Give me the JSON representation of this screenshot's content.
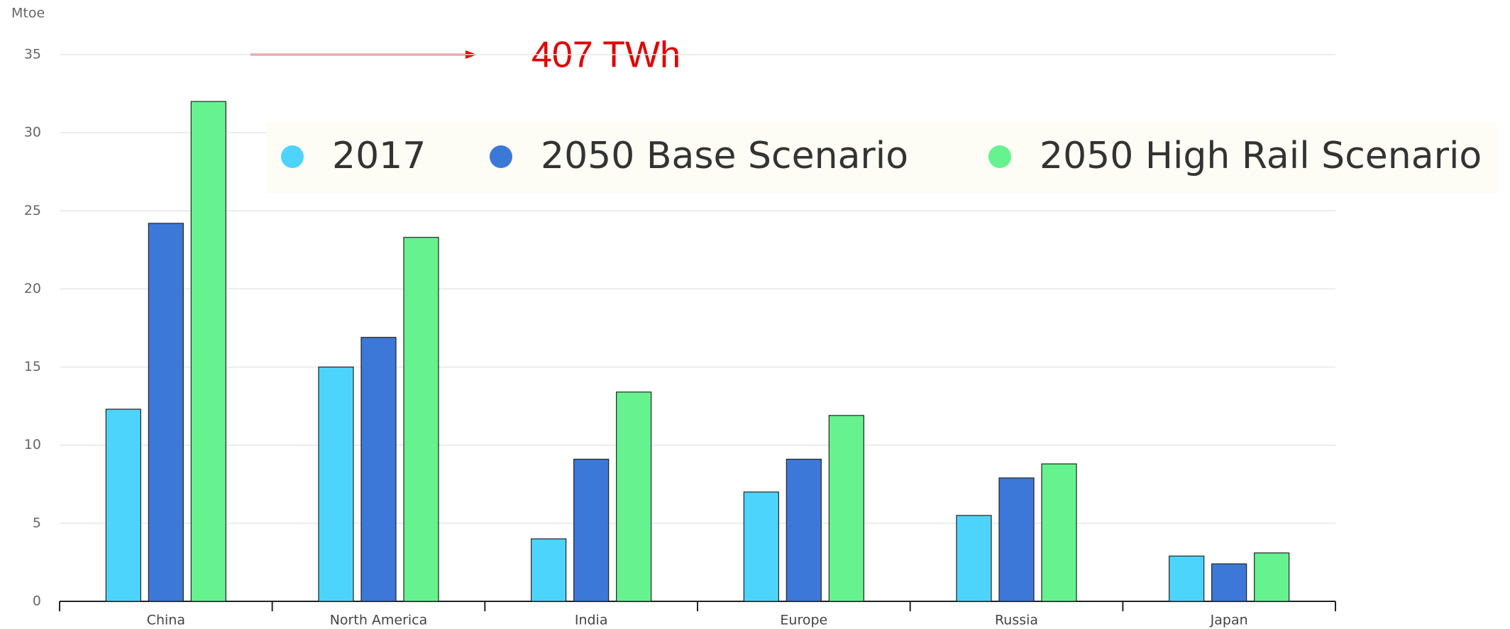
{
  "chart_data": {
    "type": "bar",
    "y_axis_label": "Mtoe",
    "annotation": "407 TWh",
    "categories": [
      "China",
      "North America",
      "India",
      "Europe",
      "Russia",
      "Japan"
    ],
    "series": [
      {
        "name": "2017",
        "color": "#4dd4fc",
        "values": [
          12.3,
          15,
          4,
          7,
          5.5,
          2.9
        ]
      },
      {
        "name": "2050 Base Scenario",
        "color": "#3c78d8",
        "values": [
          24.2,
          16.9,
          9.1,
          9.1,
          7.9,
          2.4
        ]
      },
      {
        "name": "2050 High Rail Scenario",
        "color": "#66f28f",
        "values": [
          32,
          23.3,
          13.4,
          11.9,
          8.8,
          3.1
        ]
      }
    ],
    "ylim": [
      0,
      35
    ],
    "yticks": [
      0,
      5,
      10,
      15,
      20,
      25,
      30,
      35
    ],
    "grid": true
  }
}
